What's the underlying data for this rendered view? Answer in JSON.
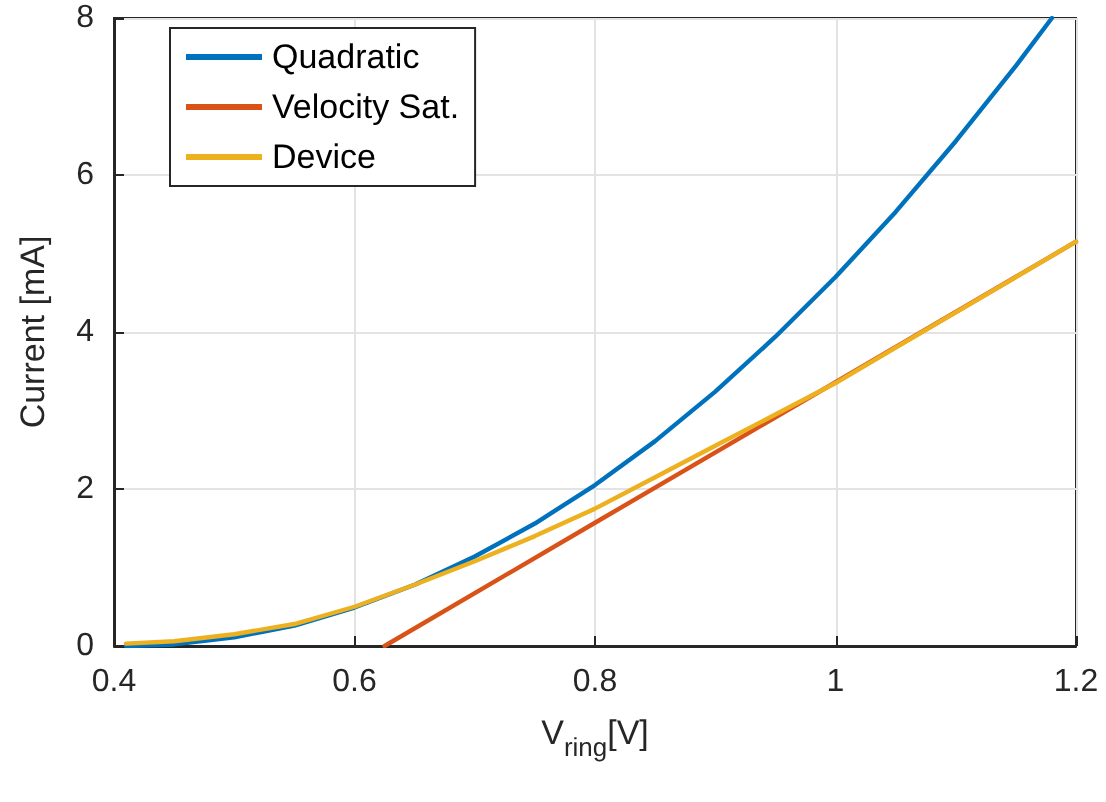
{
  "chart_data": {
    "type": "line",
    "xlabel": "V$_{ring}$[V]",
    "ylabel": "Current [mA]",
    "xlim": [
      0.4,
      1.2
    ],
    "xticks": [
      0.4,
      0.6,
      0.8,
      1,
      1.2
    ],
    "ylim": [
      0,
      8
    ],
    "yticks": [
      0,
      2,
      4,
      6,
      8
    ],
    "grid": true,
    "legend": "top left",
    "marker": "none",
    "line_style": "solid",
    "series": [
      {
        "name": "Quadratic",
        "color": "#0072bd",
        "x": [
          0.41,
          0.45,
          0.5,
          0.55,
          0.6,
          0.65,
          0.7,
          0.75,
          0.8,
          0.85,
          0.9,
          0.95,
          1.0,
          1.05,
          1.1,
          1.15,
          1.18
        ],
        "values": [
          0,
          0.02,
          0.11,
          0.26,
          0.49,
          0.78,
          1.14,
          1.56,
          2.05,
          2.61,
          3.24,
          3.94,
          4.7,
          5.53,
          6.43,
          7.39,
          8.0
        ]
      },
      {
        "name": "Velocity Sat.",
        "color": "#d95319",
        "x": [
          0.625,
          0.8,
          1.0,
          1.2
        ],
        "values": [
          0,
          1.57,
          3.36,
          5.15
        ]
      },
      {
        "name": "Device",
        "color": "#edb120",
        "x": [
          0.41,
          0.45,
          0.5,
          0.55,
          0.6,
          0.65,
          0.7,
          0.75,
          0.8,
          0.85,
          0.9,
          0.95,
          1.0,
          1.05,
          1.1,
          1.15,
          1.2
        ],
        "values": [
          0.03,
          0.06,
          0.15,
          0.28,
          0.5,
          0.78,
          1.08,
          1.4,
          1.75,
          2.15,
          2.55,
          2.95,
          3.35,
          3.8,
          4.25,
          4.7,
          5.15
        ]
      }
    ]
  }
}
